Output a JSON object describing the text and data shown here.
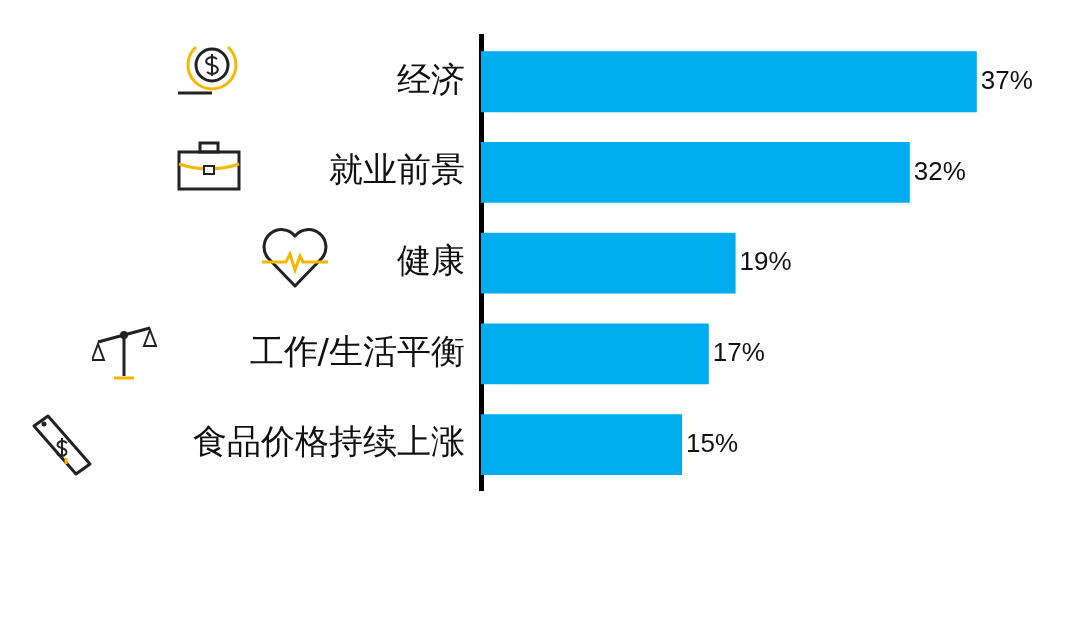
{
  "chart_data": {
    "type": "bar",
    "orientation": "horizontal",
    "categories": [
      "经济",
      "就业前景",
      "健康",
      "工作/生活平衡",
      "食品价格持续上涨"
    ],
    "values": [
      37,
      32,
      19,
      17,
      15
    ],
    "value_labels": [
      "37%",
      "32%",
      "19%",
      "17%",
      "15%"
    ],
    "color": "#00adef",
    "tick_labels": "y"
  }
}
